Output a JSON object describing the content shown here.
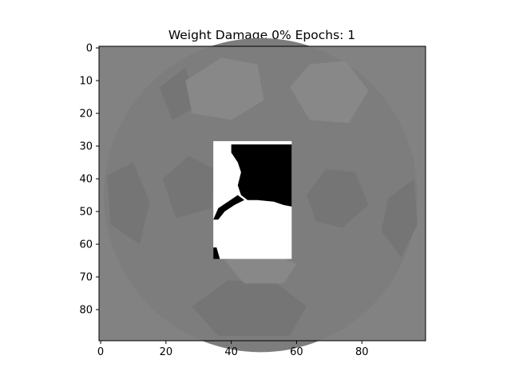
{
  "chart_data": {
    "type": "heatmap",
    "title": "Weight Damage 0% Epochs: 1",
    "colormap": "gray",
    "xlim": [
      -0.5,
      99.5
    ],
    "ylim": [
      89.5,
      -0.5
    ],
    "x_ticks": [
      0,
      20,
      40,
      60,
      80
    ],
    "y_ticks": [
      0,
      10,
      20,
      30,
      40,
      50,
      60,
      70,
      80
    ],
    "image_shape": [
      90,
      100
    ],
    "background_value": 0.51,
    "faint_ball_pattern": {
      "outer_circle": {
        "cx": 49,
        "cy": 45,
        "r": 48,
        "value": 0.49
      },
      "dark_patches_value": 0.46,
      "light_patches_value": 0.535
    },
    "revealed_patch": {
      "x_range": [
        35,
        58
      ],
      "y_range": [
        29,
        64
      ],
      "description_values": {
        "white": 1.0,
        "black": 0.0
      }
    }
  }
}
